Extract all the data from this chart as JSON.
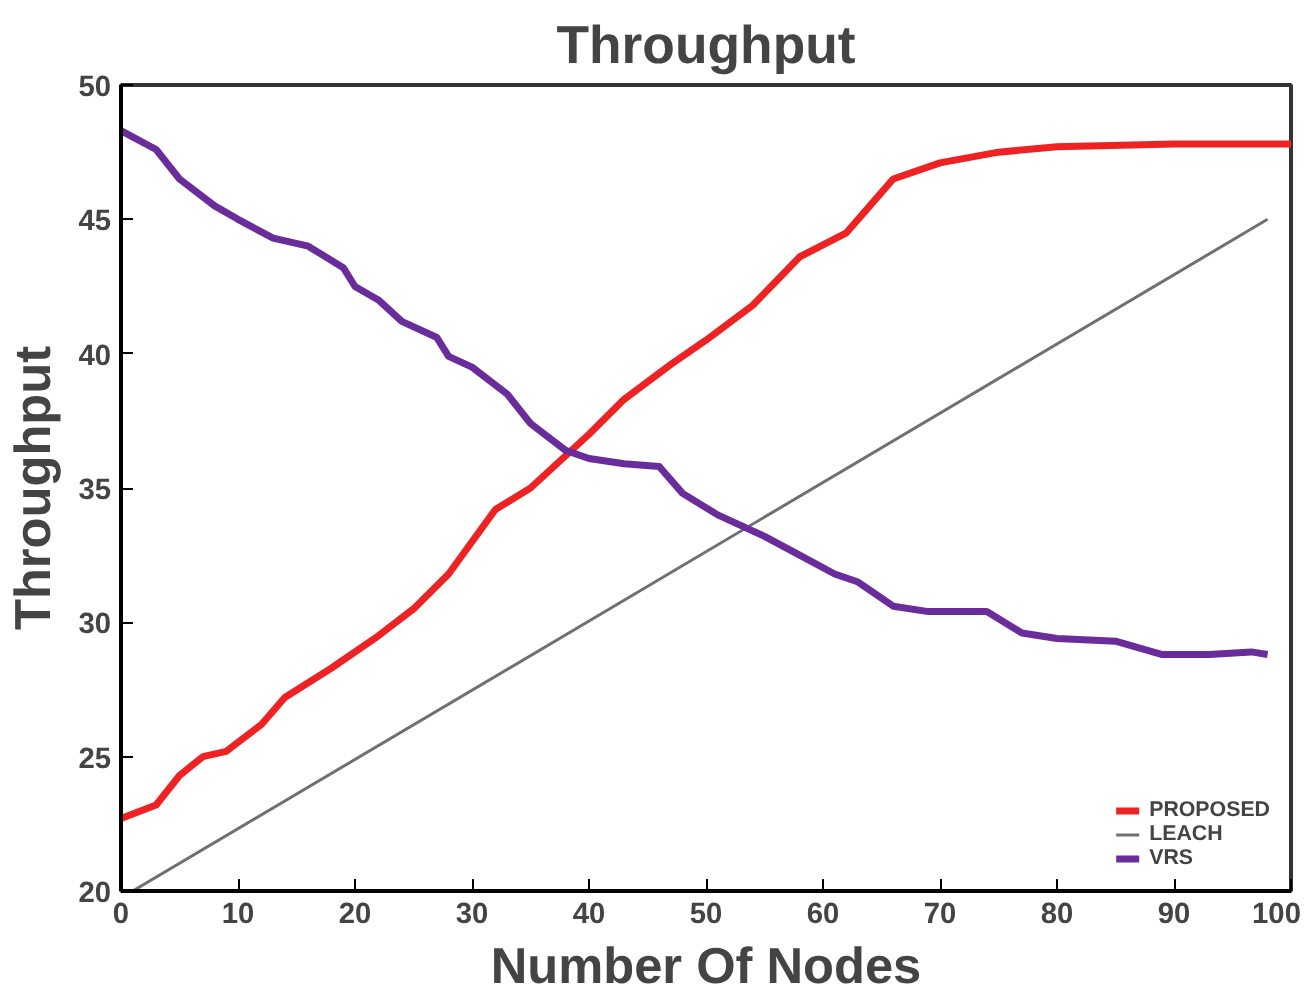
{
  "chart_data": {
    "type": "line",
    "title": "Throughput",
    "xlabel": "Number Of Nodes",
    "ylabel": "Throughput",
    "xlim": [
      0,
      100
    ],
    "ylim": [
      20,
      50
    ],
    "xticks": [
      0,
      10,
      20,
      30,
      40,
      50,
      60,
      70,
      80,
      90,
      100
    ],
    "yticks": [
      20,
      25,
      30,
      35,
      40,
      45,
      50
    ],
    "grid": false,
    "legend": "bottom right",
    "marker": "none",
    "line_style": "solid",
    "series": [
      {
        "name": "PROPOSED",
        "color": "#ee2222",
        "x": [
          0,
          3,
          5,
          7,
          9,
          12,
          14,
          18,
          22,
          25,
          28,
          30,
          32,
          35,
          37,
          40,
          43,
          47,
          50,
          54,
          58,
          62,
          64,
          66,
          70,
          75,
          80,
          90,
          100
        ],
        "values": [
          22.7,
          23.2,
          24.3,
          25.0,
          25.2,
          26.2,
          27.2,
          28.3,
          29.5,
          30.5,
          31.8,
          33.0,
          34.2,
          35.0,
          35.8,
          37.0,
          38.3,
          39.6,
          40.5,
          41.8,
          43.6,
          44.5,
          45.5,
          46.5,
          47.1,
          47.5,
          47.7,
          47.8,
          47.8
        ]
      },
      {
        "name": "LEACH",
        "color": "#707070",
        "x": [
          1,
          98
        ],
        "values": [
          20,
          45
        ]
      },
      {
        "name": "VRS",
        "color": "#6a2c9a",
        "x": [
          0,
          3,
          5,
          8,
          10,
          13,
          16,
          19,
          20,
          22,
          24,
          27,
          28,
          30,
          33,
          35,
          38,
          40,
          43,
          46,
          48,
          51,
          55,
          58,
          61,
          63,
          66,
          69,
          74,
          77,
          80,
          85,
          89,
          93,
          96.6,
          98
        ],
        "values": [
          48.3,
          47.6,
          46.5,
          45.5,
          45.0,
          44.3,
          44.0,
          43.2,
          42.5,
          42.0,
          41.2,
          40.6,
          39.9,
          39.5,
          38.5,
          37.4,
          36.4,
          36.1,
          35.9,
          35.8,
          34.8,
          34.0,
          33.2,
          32.5,
          31.8,
          31.5,
          30.6,
          30.4,
          30.4,
          29.6,
          29.4,
          29.3,
          28.8,
          28.8,
          28.9,
          28.8
        ]
      }
    ]
  }
}
